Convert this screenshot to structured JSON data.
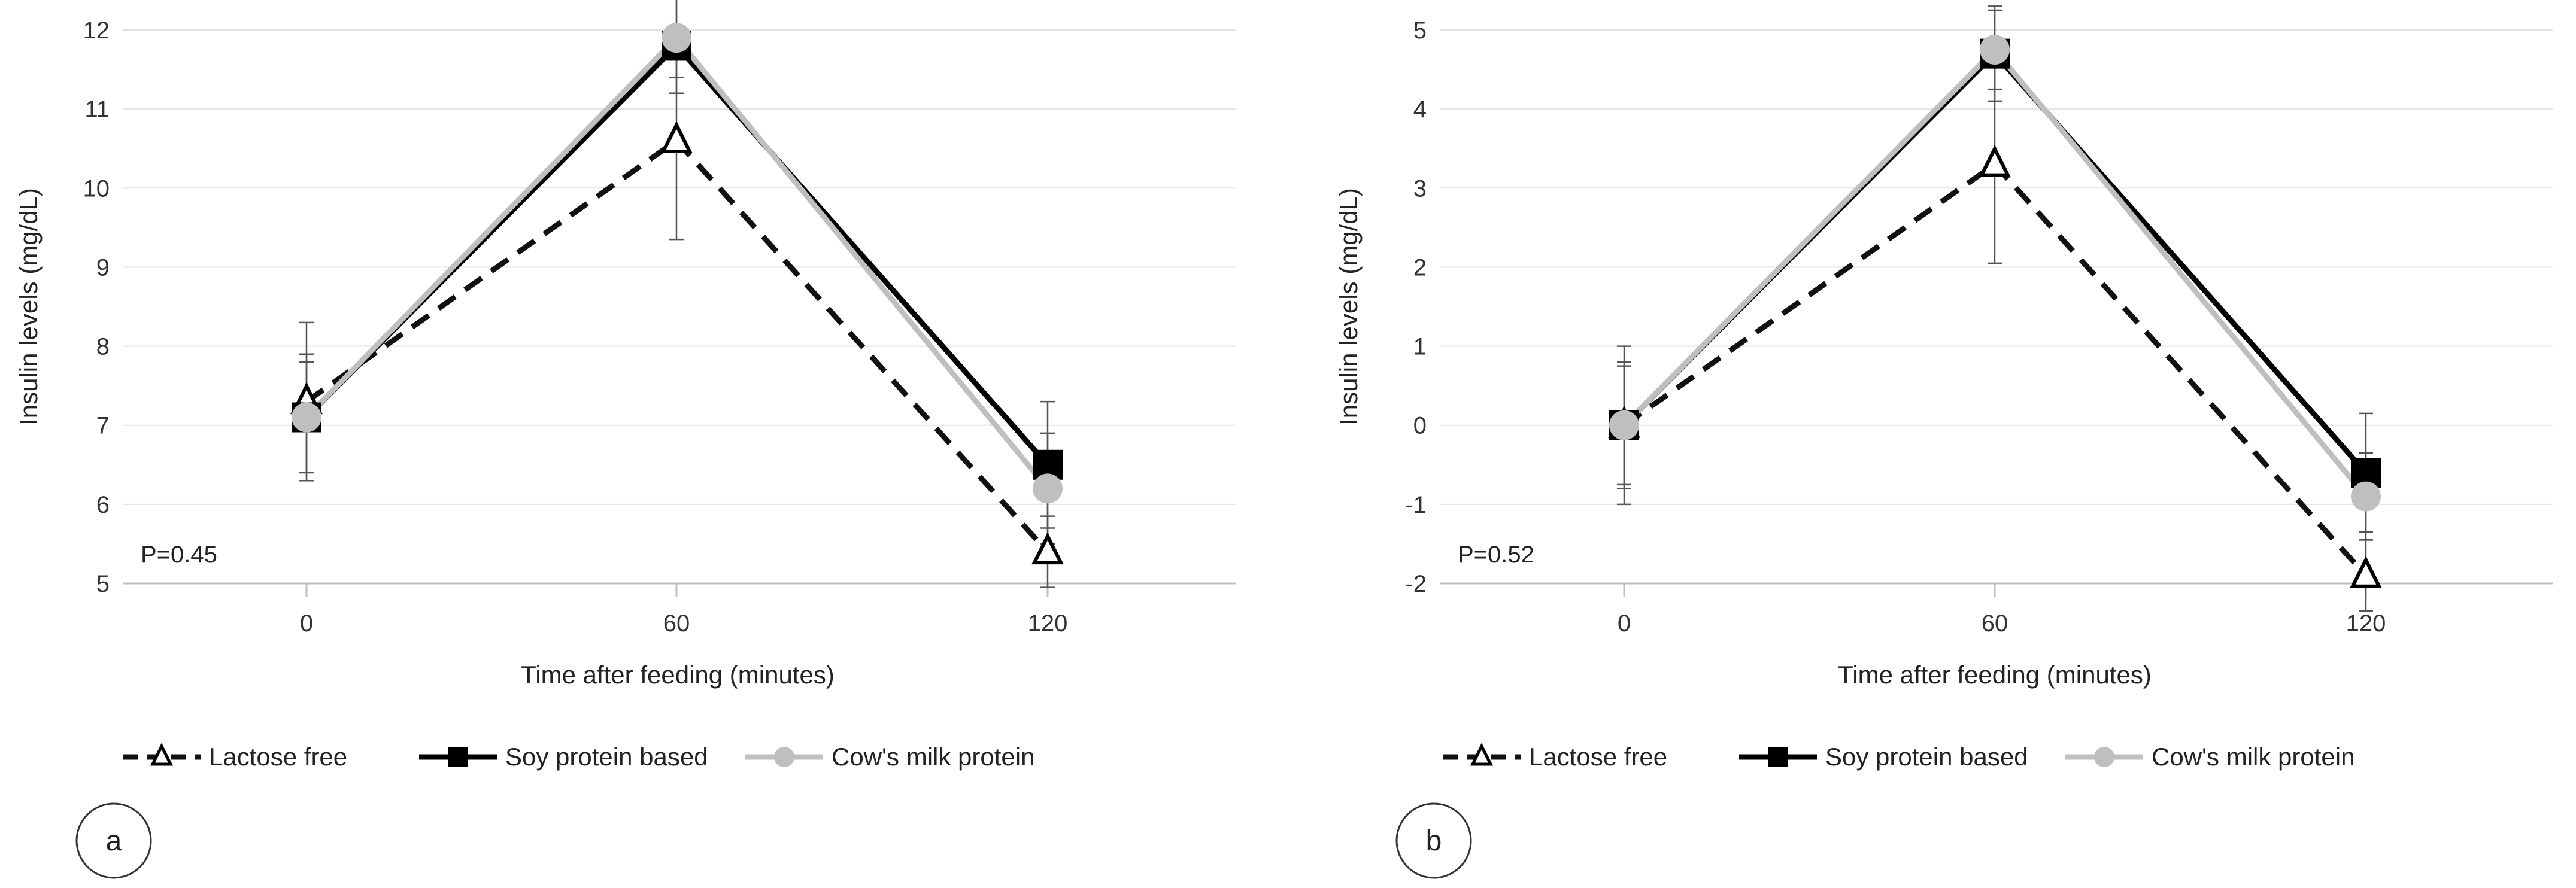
{
  "chart_data": [
    {
      "type": "line",
      "panel_label": "a",
      "p_value_label": "P=0.45",
      "xlabel": "Time after feeding (minutes)",
      "ylabel": "Insulin levels (mg/dL)",
      "x": [
        0,
        60,
        120
      ],
      "x_tick_labels": [
        "0",
        "60",
        "120"
      ],
      "ylim": [
        5,
        12
      ],
      "y_ticks": [
        5,
        6,
        7,
        8,
        9,
        10,
        11,
        12
      ],
      "grid": true,
      "legend_position": "bottom",
      "series": [
        {
          "name": "Lactose free",
          "style": "dashed",
          "color": "#111111",
          "marker": "triangle-open",
          "values": [
            7.3,
            10.6,
            5.4
          ],
          "error": [
            1.0,
            1.25,
            0.45
          ]
        },
        {
          "name": "Soy protein based",
          "style": "solid",
          "color": "#000000",
          "marker": "square",
          "values": [
            7.1,
            11.8,
            6.5
          ],
          "error": [
            0.8,
            0.6,
            0.8
          ]
        },
        {
          "name": "Cow's milk protein",
          "style": "solid",
          "color": "#bfbfbf",
          "marker": "circle",
          "values": [
            7.1,
            11.9,
            6.2
          ],
          "error": [
            0.7,
            0.5,
            0.7
          ]
        }
      ]
    },
    {
      "type": "line",
      "panel_label": "b",
      "p_value_label": "P=0.52",
      "xlabel": "Time after feeding (minutes)",
      "ylabel": "Insulin levels (mg/dL)",
      "x": [
        0,
        60,
        120
      ],
      "x_tick_labels": [
        "0",
        "60",
        "120"
      ],
      "ylim": [
        -2,
        5
      ],
      "y_ticks": [
        -2,
        -1,
        0,
        1,
        2,
        3,
        4,
        5
      ],
      "grid": true,
      "legend_position": "bottom",
      "series": [
        {
          "name": "Lactose free",
          "style": "dashed",
          "color": "#111111",
          "marker": "triangle-open",
          "values": [
            0.0,
            3.3,
            -1.9
          ],
          "error": [
            1.0,
            1.25,
            0.45
          ]
        },
        {
          "name": "Soy protein based",
          "style": "solid",
          "color": "#000000",
          "marker": "square",
          "values": [
            0.0,
            4.7,
            -0.6
          ],
          "error": [
            0.8,
            0.6,
            0.75
          ]
        },
        {
          "name": "Cow's milk protein",
          "style": "solid",
          "color": "#bfbfbf",
          "marker": "circle",
          "values": [
            0.0,
            4.75,
            -0.9
          ],
          "error": [
            0.75,
            0.5,
            0.55
          ]
        }
      ]
    }
  ]
}
